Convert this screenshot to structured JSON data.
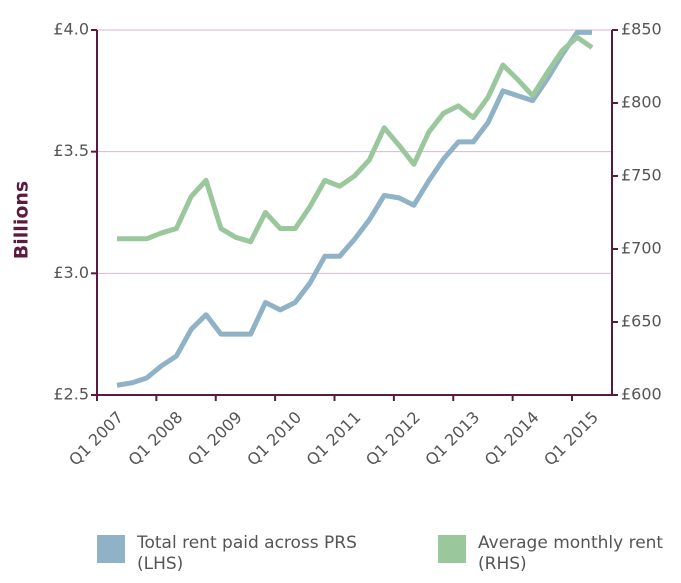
{
  "chart_data": {
    "type": "line",
    "y_label": "Billions",
    "categories": [
      "Q1 2007",
      null,
      null,
      null,
      "Q1 2008",
      null,
      null,
      null,
      "Q1 2009",
      null,
      null,
      null,
      "Q1 2010",
      null,
      null,
      null,
      "Q1 2011",
      null,
      null,
      null,
      "Q1 2012",
      null,
      null,
      null,
      "Q1 2013",
      null,
      null,
      null,
      "Q1 2014",
      null,
      null,
      null,
      "Q1 2015"
    ],
    "series": [
      {
        "name": "Total rent paid across PRS (LHS)",
        "color": "#8fb2c6",
        "values": [
          2.54,
          2.55,
          2.57,
          2.62,
          2.66,
          2.77,
          2.83,
          2.75,
          2.75,
          2.75,
          2.88,
          2.85,
          2.88,
          2.96,
          3.07,
          3.07,
          3.14,
          3.22,
          3.32,
          3.31,
          3.28,
          3.38,
          3.47,
          3.54,
          3.54,
          3.62,
          3.75,
          3.73,
          3.71,
          3.8,
          3.9,
          3.99,
          3.99
        ]
      },
      {
        "name": "Average monthly rent (RHS)",
        "color": "#9bc79d",
        "axis": "y2",
        "values": [
          707,
          707,
          707,
          711,
          714,
          736,
          747,
          714,
          708,
          705,
          725,
          714,
          714,
          729,
          747,
          743,
          750,
          761,
          783,
          771,
          758,
          780,
          793,
          798,
          790,
          804,
          826,
          816,
          805,
          821,
          836,
          845,
          838
        ]
      }
    ],
    "ylim": [
      2.5,
      4.0
    ],
    "yticks": [
      {
        "value": 2.5,
        "label": "£2.5"
      },
      {
        "value": 3.0,
        "label": "£3.0"
      },
      {
        "value": 3.5,
        "label": "£3.5"
      },
      {
        "value": 4.0,
        "label": "£4.0"
      }
    ],
    "y2lim": [
      600,
      850
    ],
    "y2ticks": [
      {
        "value": 600,
        "label": "£600"
      },
      {
        "value": 650,
        "label": "£650"
      },
      {
        "value": 700,
        "label": "£700"
      },
      {
        "value": 750,
        "label": "£750"
      },
      {
        "value": 800,
        "label": "£800"
      },
      {
        "value": 850,
        "label": "£850"
      }
    ],
    "grid": true
  }
}
